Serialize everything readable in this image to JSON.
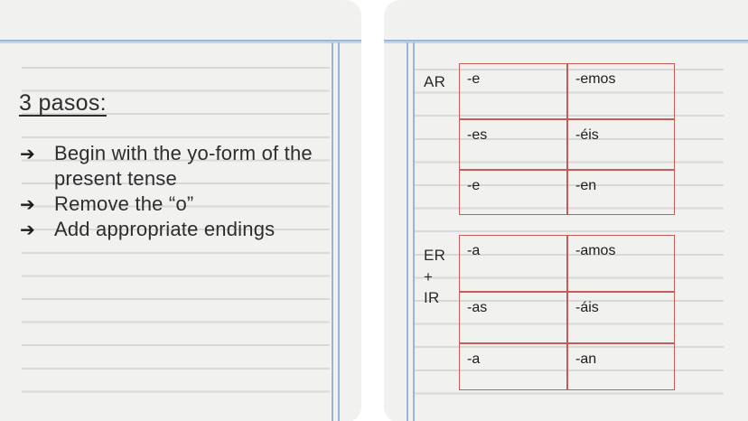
{
  "colors": {
    "paper": "#f1f1f0",
    "rule-line": "#d8d8d8",
    "margin-line": "#9cb4d6",
    "top-line-dark": "#92aed3",
    "top-line-light": "#c3d3e9",
    "table-border": "#c45c58",
    "ink": "#2d2d2d",
    "table-ink": "#1d1d1d"
  },
  "left_page": {
    "heading": "3 pasos:",
    "bullet_marker": "➔",
    "bullets": [
      {
        "text": "Begin with the yo-form of the present tense"
      },
      {
        "text": "Remove the “o”"
      },
      {
        "text": "Add appropriate endings"
      }
    ]
  },
  "right_page": {
    "ar_table": {
      "label": "AR",
      "rows": [
        [
          "-e",
          "-emos"
        ],
        [
          "-es",
          "-éis"
        ],
        [
          "-e",
          "-en"
        ]
      ]
    },
    "er_ir_table": {
      "label_lines": [
        "ER",
        "+",
        "IR"
      ],
      "rows": [
        [
          "-a",
          "-amos"
        ],
        [
          "-as",
          "-áis"
        ],
        [
          "-a",
          "-an"
        ]
      ]
    }
  }
}
